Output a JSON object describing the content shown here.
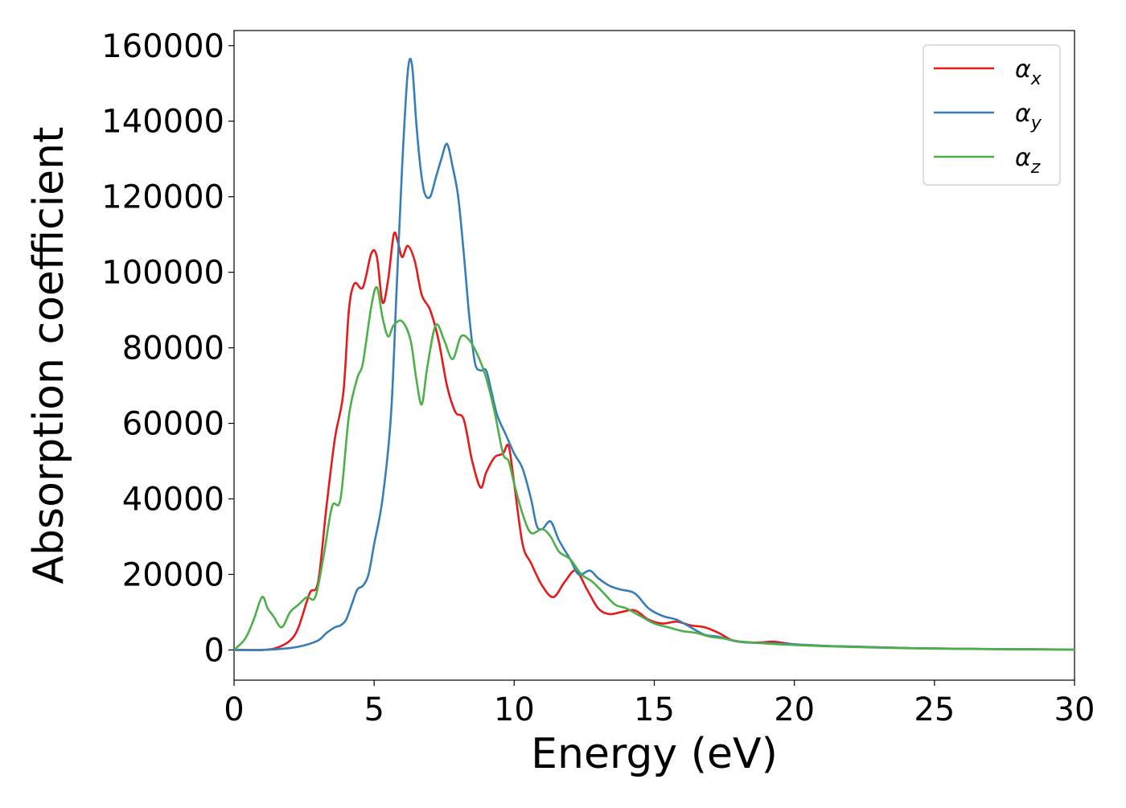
{
  "chart_data": {
    "type": "line",
    "title": "",
    "xlabel": "Energy (eV)",
    "ylabel": "Absorption coefficient",
    "xlim": [
      0,
      30
    ],
    "ylim": [
      -8000,
      164000
    ],
    "xticks": [
      0,
      5,
      10,
      15,
      20,
      25,
      30
    ],
    "yticks": [
      0,
      20000,
      40000,
      60000,
      80000,
      100000,
      120000,
      140000,
      160000
    ],
    "grid": false,
    "legend_position": "top-right",
    "series": [
      {
        "name": "α",
        "subscript": "x",
        "color": "#e41a1c",
        "x": [
          0,
          0.5,
          1.0,
          1.5,
          2.0,
          2.3,
          2.7,
          3.0,
          3.3,
          3.6,
          3.9,
          4.1,
          4.3,
          4.6,
          4.9,
          5.1,
          5.3,
          5.5,
          5.7,
          5.85,
          6.0,
          6.2,
          6.45,
          6.7,
          7.0,
          7.3,
          7.6,
          7.9,
          8.2,
          8.5,
          8.8,
          9.0,
          9.3,
          9.6,
          9.8,
          10.0,
          10.3,
          10.6,
          11.0,
          11.4,
          11.8,
          12.2,
          12.6,
          13.0,
          13.4,
          13.8,
          14.3,
          14.8,
          15.3,
          15.8,
          16.3,
          16.8,
          17.3,
          17.8,
          18.3,
          18.8,
          19.2,
          19.5,
          20.0,
          21.0,
          22.0,
          23.0,
          24.0,
          25.0,
          27.0,
          30.0
        ],
        "y": [
          0,
          0,
          0,
          500,
          2500,
          6000,
          15000,
          18000,
          38000,
          56000,
          68000,
          90000,
          97000,
          96000,
          105000,
          104000,
          92000,
          98000,
          110000,
          108000,
          104000,
          107000,
          103000,
          94000,
          90000,
          82000,
          70000,
          63000,
          61000,
          50000,
          43000,
          47000,
          51000,
          52000,
          54000,
          44000,
          28000,
          23000,
          17000,
          14000,
          18000,
          21000,
          16000,
          11000,
          9500,
          10000,
          10500,
          8000,
          7000,
          7500,
          6500,
          6000,
          4500,
          2500,
          2000,
          2000,
          2200,
          2000,
          1500,
          1100,
          900,
          700,
          500,
          400,
          250,
          100
        ]
      },
      {
        "name": "α",
        "subscript": "y",
        "color": "#377eb8",
        "x": [
          0,
          1.0,
          2.0,
          2.5,
          3.0,
          3.3,
          3.6,
          3.8,
          4.0,
          4.2,
          4.4,
          4.6,
          4.8,
          5.0,
          5.3,
          5.6,
          5.8,
          6.0,
          6.2,
          6.35,
          6.5,
          6.65,
          6.8,
          7.0,
          7.2,
          7.4,
          7.6,
          7.8,
          8.0,
          8.2,
          8.4,
          8.6,
          8.8,
          9.0,
          9.2,
          9.4,
          9.7,
          10.0,
          10.3,
          10.6,
          10.8,
          11.0,
          11.3,
          11.6,
          12.0,
          12.3,
          12.7,
          13.0,
          13.4,
          13.8,
          14.3,
          14.8,
          15.3,
          15.8,
          16.3,
          16.8,
          17.3,
          17.8,
          18.3,
          19.0,
          20.0,
          21.0,
          22.0,
          23.0,
          24.0,
          25.0,
          27.0,
          30.0
        ],
        "y": [
          0,
          0,
          500,
          1200,
          2500,
          4500,
          6000,
          6500,
          8000,
          12000,
          16000,
          17000,
          20000,
          28000,
          40000,
          62000,
          95000,
          128000,
          153000,
          155000,
          140000,
          128000,
          121000,
          120000,
          125000,
          130000,
          134000,
          128000,
          120000,
          105000,
          88000,
          76000,
          74000,
          74000,
          68000,
          62000,
          57000,
          52000,
          48000,
          40000,
          33000,
          32000,
          34000,
          29000,
          24000,
          20000,
          21000,
          19000,
          17000,
          16000,
          15000,
          11000,
          9000,
          8000,
          6000,
          4000,
          3500,
          2500,
          2000,
          1800,
          1500,
          1100,
          900,
          700,
          500,
          400,
          250,
          100
        ]
      },
      {
        "name": "α",
        "subscript": "z",
        "color": "#4daf4a",
        "x": [
          0,
          0.4,
          0.7,
          1.0,
          1.2,
          1.4,
          1.7,
          2.0,
          2.3,
          2.6,
          2.9,
          3.2,
          3.5,
          3.8,
          4.1,
          4.4,
          4.6,
          4.9,
          5.1,
          5.3,
          5.5,
          5.7,
          6.0,
          6.3,
          6.5,
          6.7,
          6.9,
          7.2,
          7.5,
          7.8,
          8.1,
          8.4,
          8.7,
          9.0,
          9.3,
          9.6,
          9.8,
          10.0,
          10.3,
          10.6,
          11.0,
          11.3,
          11.6,
          12.0,
          12.4,
          12.8,
          13.2,
          13.6,
          14.0,
          14.5,
          15.0,
          15.5,
          16.0,
          16.5,
          17.0,
          17.5,
          18.0,
          19.0,
          20.0,
          21.0,
          22.0,
          23.0,
          24.0,
          25.0,
          27.0,
          30.0
        ],
        "y": [
          0,
          3000,
          8000,
          14000,
          11000,
          9000,
          6000,
          10000,
          12000,
          14000,
          14000,
          25000,
          38000,
          40000,
          62000,
          72000,
          76000,
          91000,
          96000,
          88000,
          83000,
          86000,
          87000,
          82000,
          72000,
          65000,
          75000,
          86000,
          82000,
          77000,
          83000,
          82000,
          78000,
          72000,
          63000,
          52000,
          50000,
          44000,
          36000,
          31000,
          32000,
          30000,
          26000,
          24000,
          20000,
          18000,
          15000,
          12000,
          11000,
          9000,
          7000,
          6000,
          5000,
          4500,
          3500,
          3000,
          2300,
          1700,
          1300,
          1000,
          800,
          600,
          450,
          350,
          200,
          100
        ]
      }
    ]
  }
}
